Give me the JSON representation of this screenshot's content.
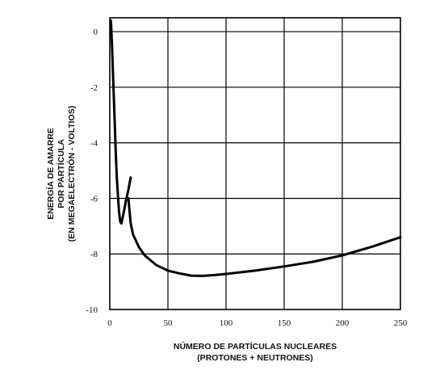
{
  "chart_data": {
    "type": "line",
    "title": "",
    "xlabel_lines": [
      "NÚMERO DE PARTÍCULAS NUCLEARES",
      "(PROTONES + NEUTRONES)"
    ],
    "ylabel_lines": [
      "ENERGÍA DE AMARRE",
      "POR PARTÍCULA",
      "(EN MEGAELECTRÓN - VOLTIOS)"
    ],
    "xlim": [
      0,
      250
    ],
    "ylim": [
      -10,
      0.5
    ],
    "xticks": [
      "0",
      "50",
      "100",
      "150",
      "200",
      "250"
    ],
    "yticks": [
      "0",
      "-2",
      "-4",
      "-6",
      "-8",
      "-10"
    ],
    "x_tick_values": [
      0,
      50,
      100,
      150,
      200,
      250
    ],
    "y_tick_values": [
      0,
      -2,
      -4,
      -6,
      -8,
      -10
    ],
    "grid": true,
    "legend": "none",
    "line_color": "#000000",
    "series": [
      {
        "x": [
          1,
          2,
          3,
          4,
          5,
          6,
          7,
          8,
          9,
          10,
          12,
          14,
          16,
          18
        ],
        "y": [
          0.4,
          -0.6,
          -1.8,
          -3.0,
          -4.2,
          -5.2,
          -5.9,
          -6.5,
          -6.85,
          -6.9,
          -6.5,
          -6.05,
          -5.7,
          -5.25
        ]
      },
      {
        "x": [
          16,
          18,
          20,
          25,
          30,
          40,
          50,
          60,
          70,
          80,
          90,
          100,
          125,
          150,
          175,
          200,
          225,
          250
        ],
        "y": [
          -6.0,
          -6.9,
          -7.3,
          -7.75,
          -8.05,
          -8.4,
          -8.6,
          -8.7,
          -8.78,
          -8.79,
          -8.76,
          -8.72,
          -8.6,
          -8.45,
          -8.28,
          -8.05,
          -7.75,
          -7.4
        ]
      }
    ]
  }
}
